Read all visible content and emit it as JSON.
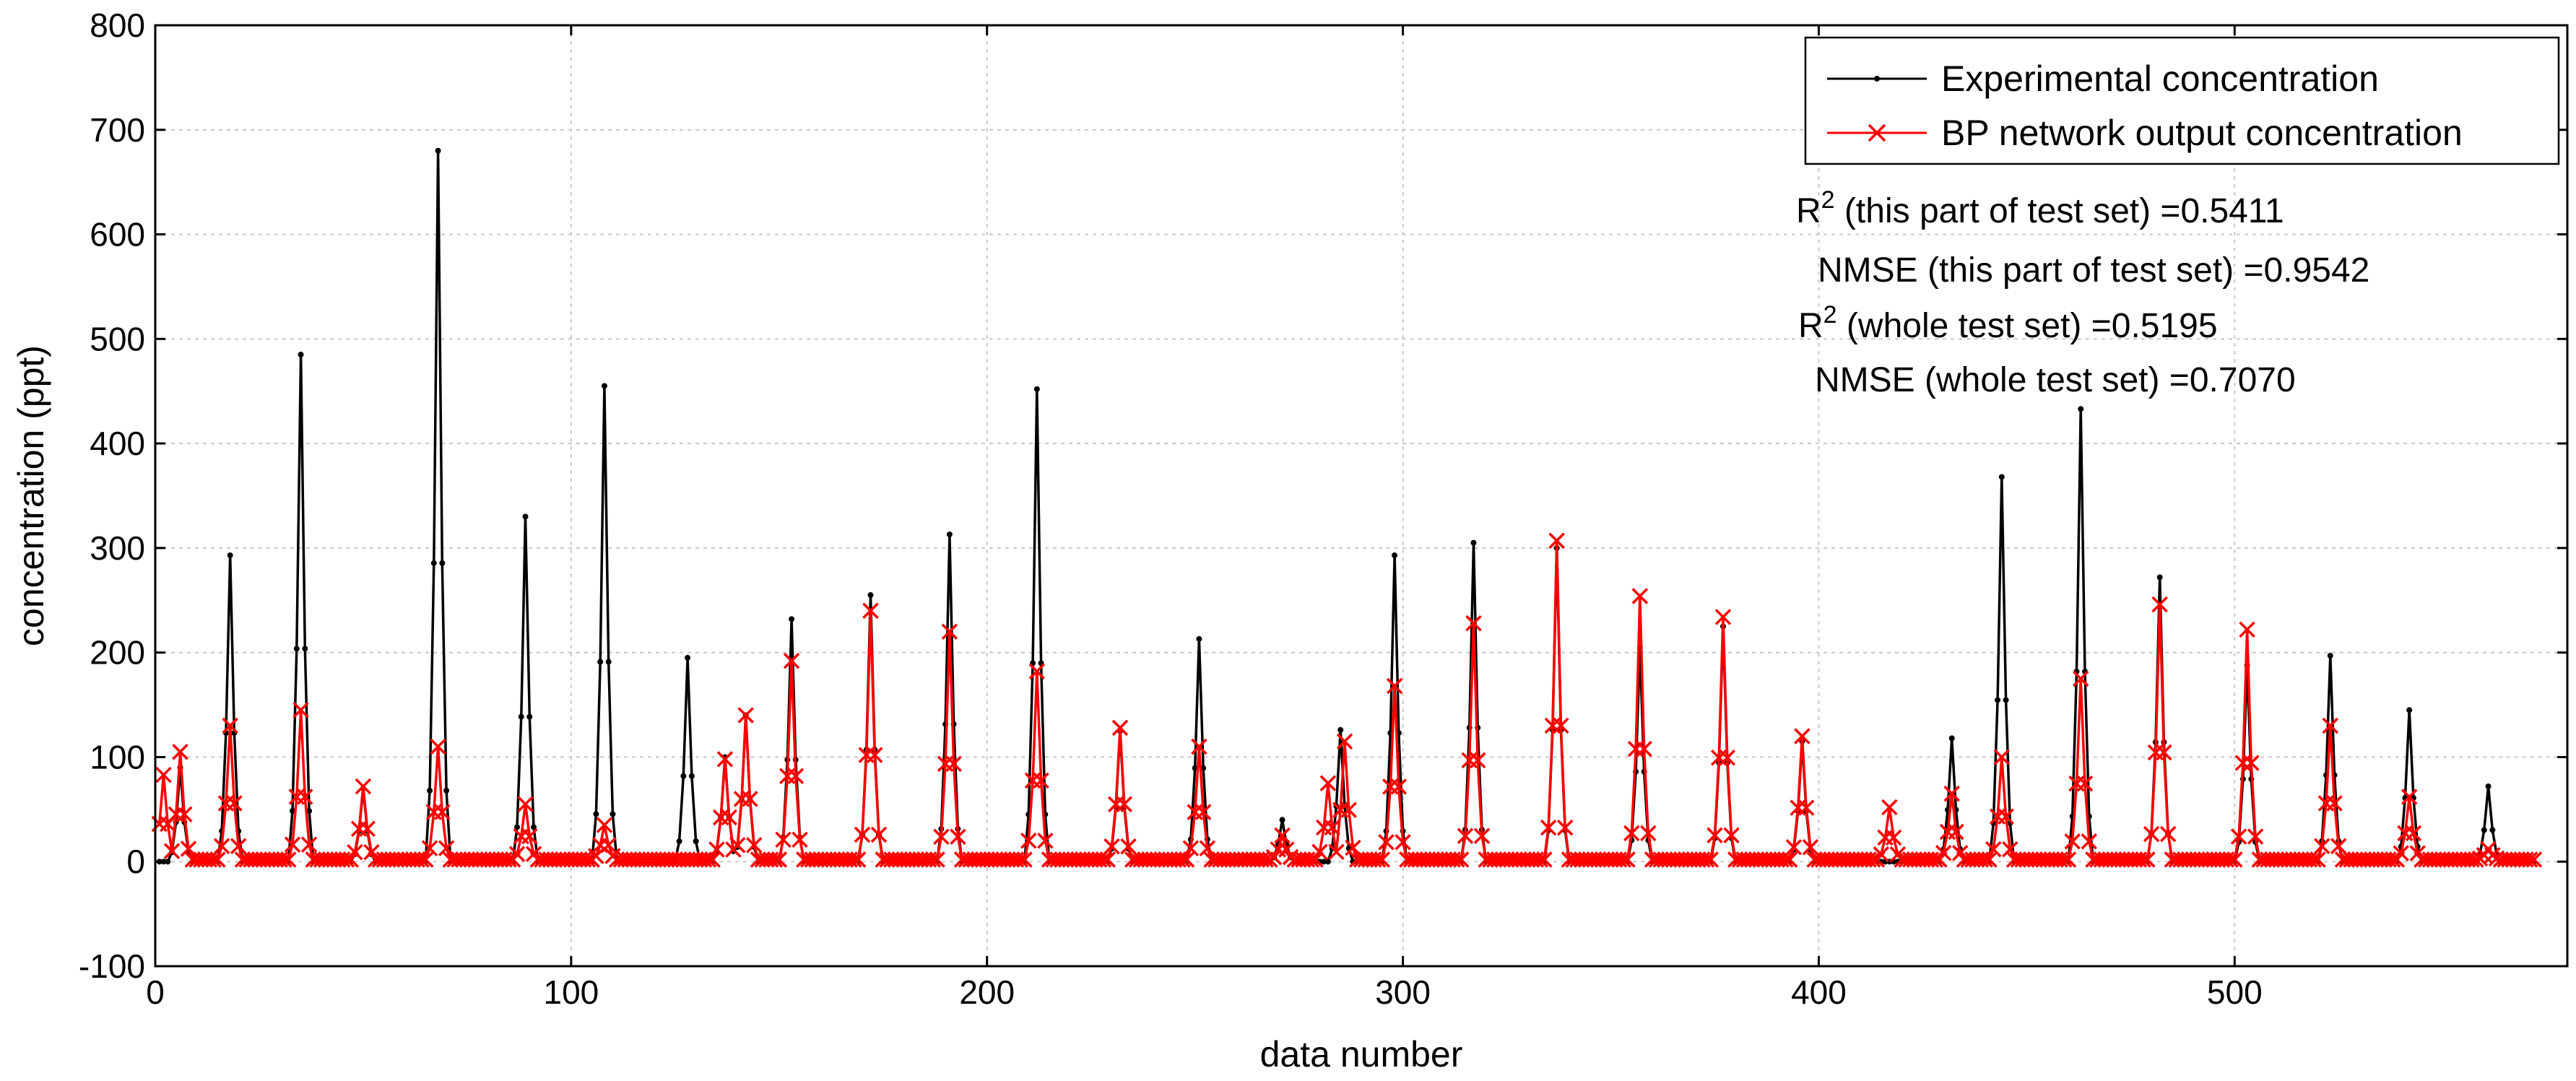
{
  "chart_data": {
    "type": "line",
    "xlabel": "data number",
    "ylabel": "concentration (ppt)",
    "xlim": [
      0,
      580
    ],
    "ylim": [
      -100,
      800
    ],
    "x_ticks": [
      0,
      100,
      200,
      300,
      400,
      500
    ],
    "y_ticks": [
      -100,
      0,
      100,
      200,
      300,
      400,
      500,
      600,
      700,
      800
    ],
    "grid": true,
    "legend_position": "top-right",
    "colors": {
      "experimental": "#000000",
      "bp": "#ff0000",
      "grid": "#c8c8c8"
    },
    "series": [
      {
        "name": "Experimental concentration",
        "marker": "dot",
        "baseline": 0,
        "x_range": [
          1,
          572
        ],
        "peaks": [
          [
            6,
            90
          ],
          [
            18,
            293
          ],
          [
            35,
            485
          ],
          [
            50,
            70
          ],
          [
            68,
            680
          ],
          [
            89,
            330
          ],
          [
            108,
            455
          ],
          [
            128,
            195
          ],
          [
            137,
            100
          ],
          [
            142,
            140
          ],
          [
            153,
            232
          ],
          [
            172,
            255
          ],
          [
            191,
            313
          ],
          [
            212,
            452
          ],
          [
            232,
            125
          ],
          [
            251,
            213
          ],
          [
            271,
            40
          ],
          [
            285,
            126
          ],
          [
            298,
            293
          ],
          [
            317,
            305
          ],
          [
            337,
            300
          ],
          [
            357,
            205
          ],
          [
            377,
            225
          ],
          [
            396,
            115
          ],
          [
            432,
            118
          ],
          [
            444,
            368
          ],
          [
            463,
            433
          ],
          [
            482,
            272
          ],
          [
            503,
            188
          ],
          [
            523,
            197
          ],
          [
            542,
            145
          ],
          [
            561,
            72
          ]
        ]
      },
      {
        "name": "BP network output concentration",
        "marker": "x",
        "baseline": 2,
        "x_range": [
          1,
          572
        ],
        "peaks": [
          [
            2,
            83
          ],
          [
            6,
            105
          ],
          [
            18,
            130
          ],
          [
            35,
            145
          ],
          [
            50,
            72
          ],
          [
            68,
            110
          ],
          [
            89,
            55
          ],
          [
            108,
            35
          ],
          [
            137,
            98
          ],
          [
            142,
            140
          ],
          [
            153,
            192
          ],
          [
            172,
            240
          ],
          [
            191,
            220
          ],
          [
            212,
            182
          ],
          [
            232,
            128
          ],
          [
            251,
            110
          ],
          [
            271,
            25
          ],
          [
            282,
            75
          ],
          [
            286,
            115
          ],
          [
            298,
            168
          ],
          [
            317,
            228
          ],
          [
            337,
            307
          ],
          [
            357,
            254
          ],
          [
            377,
            234
          ],
          [
            396,
            120
          ],
          [
            417,
            52
          ],
          [
            432,
            65
          ],
          [
            444,
            100
          ],
          [
            463,
            175
          ],
          [
            482,
            246
          ],
          [
            503,
            222
          ],
          [
            523,
            130
          ],
          [
            542,
            62
          ],
          [
            561,
            12
          ]
        ]
      }
    ],
    "annotations": [
      {
        "pre": "R",
        "sup": "2",
        "post": " (this part of test set) =0.5411"
      },
      {
        "pre": "NMSE (this part of test set) =0.9542",
        "sup": "",
        "post": ""
      },
      {
        "pre": "R",
        "sup": "2",
        "post": " (whole test set) =0.5195"
      },
      {
        "pre": "NMSE (whole test set) =0.7070",
        "sup": "",
        "post": ""
      }
    ]
  }
}
